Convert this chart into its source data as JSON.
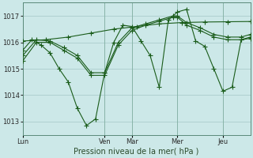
{
  "title": "",
  "xlabel": "Pression niveau de la mer( hPa )",
  "ylabel": "",
  "bg_color": "#cce8e8",
  "line_color": "#1a5c1a",
  "grid_color": "#aacccc",
  "ylim": [
    1012.5,
    1017.5
  ],
  "yticks": [
    1013,
    1014,
    1015,
    1016,
    1017
  ],
  "xtick_labels": [
    "Lun",
    "Ven",
    "Mar",
    "Mer",
    "Jeu"
  ],
  "xtick_positions": [
    0.0,
    0.36,
    0.48,
    0.68,
    0.88
  ],
  "vline_positions": [
    0.0,
    0.36,
    0.48,
    0.68,
    0.88
  ],
  "xlim": [
    0.0,
    1.0
  ],
  "series_volatile_x": [
    0.0,
    0.04,
    0.08,
    0.12,
    0.16,
    0.2,
    0.24,
    0.28,
    0.32,
    0.36,
    0.4,
    0.44,
    0.48,
    0.52,
    0.56,
    0.6,
    0.64,
    0.68,
    0.72,
    0.76,
    0.8,
    0.84,
    0.88,
    0.92,
    0.96,
    1.0
  ],
  "series_volatile_y": [
    1015.7,
    1016.1,
    1015.9,
    1015.6,
    1015.0,
    1014.5,
    1013.5,
    1012.85,
    1013.1,
    1014.85,
    1016.0,
    1016.65,
    1016.6,
    1016.05,
    1015.5,
    1014.3,
    1016.85,
    1017.15,
    1017.25,
    1016.05,
    1015.85,
    1015.0,
    1014.15,
    1014.3,
    1016.1,
    1016.15
  ],
  "series_smooth1_x": [
    0.0,
    0.06,
    0.12,
    0.18,
    0.24,
    0.3,
    0.36,
    0.42,
    0.48,
    0.54,
    0.6,
    0.66,
    0.68,
    0.72,
    0.78,
    0.84,
    0.9,
    0.96,
    1.0
  ],
  "series_smooth1_y": [
    1015.5,
    1016.1,
    1016.05,
    1015.8,
    1015.5,
    1014.85,
    1014.85,
    1016.0,
    1016.55,
    1016.7,
    1016.85,
    1017.0,
    1017.0,
    1016.75,
    1016.55,
    1016.3,
    1016.2,
    1016.2,
    1016.3
  ],
  "series_smooth2_x": [
    0.0,
    0.06,
    0.12,
    0.18,
    0.24,
    0.3,
    0.36,
    0.42,
    0.48,
    0.54,
    0.6,
    0.66,
    0.68,
    0.72,
    0.78,
    0.84,
    0.9,
    0.96,
    1.0
  ],
  "series_smooth2_y": [
    1015.3,
    1016.0,
    1016.0,
    1015.7,
    1015.4,
    1014.75,
    1014.75,
    1015.9,
    1016.45,
    1016.65,
    1016.8,
    1016.95,
    1016.95,
    1016.65,
    1016.45,
    1016.2,
    1016.1,
    1016.1,
    1016.2
  ],
  "series_trend_x": [
    0.0,
    0.1,
    0.2,
    0.3,
    0.4,
    0.5,
    0.6,
    0.7,
    0.8,
    0.9,
    1.0
  ],
  "series_trend_y": [
    1016.05,
    1016.1,
    1016.2,
    1016.35,
    1016.5,
    1016.6,
    1016.7,
    1016.75,
    1016.77,
    1016.78,
    1016.79
  ]
}
